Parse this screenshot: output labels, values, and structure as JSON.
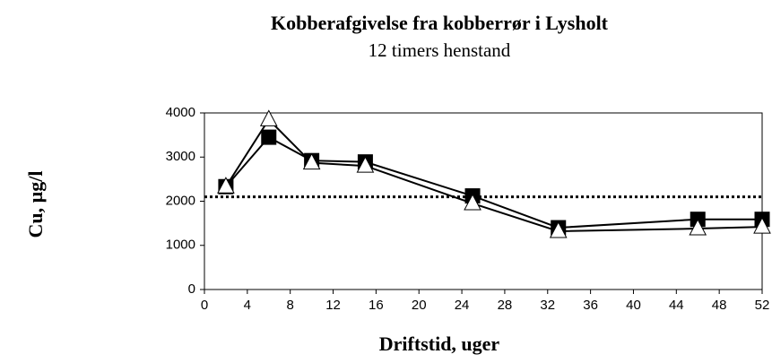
{
  "chart_data": {
    "type": "line",
    "title": "Kobberafgivelse fra kobberrør i Lysholt",
    "subtitle": "12 timers henstand",
    "x_label": "Driftstid, uger",
    "y_label": "Cu, µg/l",
    "x": [
      2,
      6,
      10,
      15,
      25,
      33,
      46,
      52
    ],
    "series": [
      {
        "color": "#000000",
        "marker": "square",
        "values": [
          2330,
          3450,
          2920,
          2890,
          2120,
          1400,
          1590,
          1590
        ]
      },
      {
        "color": "#000000",
        "marker": "triangle",
        "values": [
          2330,
          3850,
          2870,
          2800,
          1950,
          1320,
          1380,
          1420
        ]
      }
    ],
    "reference_line": {
      "y": 2100,
      "style": "dotted"
    },
    "xlim": [
      0,
      52
    ],
    "xticks": [
      0,
      4,
      8,
      12,
      16,
      20,
      24,
      28,
      32,
      36,
      40,
      44,
      48,
      52
    ],
    "ylim": [
      0,
      4000
    ],
    "yticks": [
      0,
      1000,
      2000,
      3000,
      4000
    ],
    "grid": false
  }
}
